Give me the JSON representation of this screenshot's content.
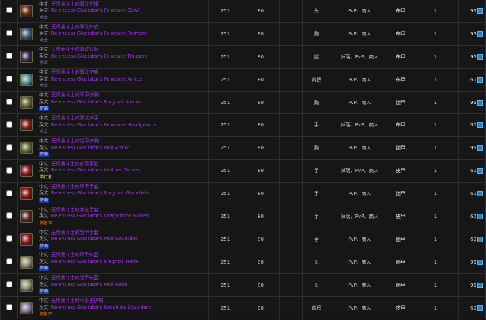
{
  "labels": {
    "zh": "中文:",
    "en": "英文:"
  },
  "class_colors": {
    "术士": "#9482c9",
    "萨满": "#2459ff",
    "潜行者": "#fff569",
    "德鲁伊": "#ff7d0a"
  },
  "rows": [
    {
      "zh": "无情角斗士的邪纹兜帽",
      "en": "Relentless Gladiator's Felweave Cowl",
      "class": "术士",
      "ilvl": "251",
      "req": "80",
      "extra": "",
      "slot": "头",
      "source": "PvP、商人",
      "type": "布甲",
      "qty": "1",
      "cost": "95",
      "icon_color": "#6b2a1a"
    },
    {
      "zh": "无情角斗士的邪纹外衣",
      "en": "Relentless Gladiator's Felweave Raiment",
      "class": "术士",
      "ilvl": "251",
      "req": "80",
      "extra": "",
      "slot": "胸",
      "source": "PvP、商人",
      "type": "布甲",
      "qty": "1",
      "cost": "95",
      "icon_color": "#4a5a80"
    },
    {
      "zh": "无情角斗士的邪纹长裤",
      "en": "Relentless Gladiator's Felweave Trousers",
      "class": "术士",
      "ilvl": "251",
      "req": "80",
      "extra": "",
      "slot": "腿",
      "source": "掉落、PvP、商人",
      "type": "布甲",
      "qty": "1",
      "cost": "95",
      "icon_color": "#3a2a55"
    },
    {
      "zh": "无情角斗士的邪纹护肩",
      "en": "Relentless Gladiator's Felweave Amice",
      "class": "术士",
      "ilvl": "251",
      "req": "80",
      "extra": "",
      "slot": "肩膀",
      "source": "PvP、商人",
      "type": "布甲",
      "qty": "1",
      "cost": "60",
      "icon_color": "#5a9a9a"
    },
    {
      "zh": "无情角斗士的环甲护胸",
      "en": "Relentless Gladiator's Ringmail Armor",
      "class": "萨满",
      "ilvl": "251",
      "req": "80",
      "extra": "",
      "slot": "胸",
      "source": "PvP、商人",
      "type": "锁甲",
      "qty": "1",
      "cost": "95",
      "icon_color": "#6a6a3a"
    },
    {
      "zh": "无情角斗士的邪纹护手",
      "en": "Relentless Gladiator's Felweave Handguards",
      "class": "术士",
      "ilvl": "251",
      "req": "80",
      "extra": "",
      "slot": "手",
      "source": "掉落、PvP、商人",
      "type": "布甲",
      "qty": "1",
      "cost": "60",
      "icon_color": "#8a1a1a"
    },
    {
      "zh": "无情角斗士的锁甲护胸",
      "en": "Relentless Gladiator's Mail Armor",
      "class": "萨满",
      "ilvl": "251",
      "req": "80",
      "extra": "",
      "slot": "胸",
      "source": "PvP、商人",
      "type": "锁甲",
      "qty": "1",
      "cost": "95",
      "icon_color": "#6a6a3a"
    },
    {
      "zh": "无情角斗士的皮甲手套",
      "en": "Relentless Gladiator's Leather Gloves",
      "class": "潜行者",
      "ilvl": "251",
      "req": "80",
      "extra": "",
      "slot": "手",
      "source": "掉落、PvP、商人",
      "type": "皮甲",
      "qty": "1",
      "cost": "60",
      "icon_color": "#8a1a1a"
    },
    {
      "zh": "无情角斗士的环甲手套",
      "en": "Relentless Gladiator's Ringmail Gauntlets",
      "class": "萨满",
      "ilvl": "251",
      "req": "80",
      "extra": "",
      "slot": "手",
      "source": "PvP、商人",
      "type": "锁甲",
      "qty": "1",
      "cost": "60",
      "icon_color": "#8a1a1a"
    },
    {
      "zh": "无情角斗士的龙皮手套",
      "en": "Relentless Gladiator's Dragonhide Gloves",
      "class": "德鲁伊",
      "ilvl": "251",
      "req": "80",
      "extra": "",
      "slot": "手",
      "source": "掉落、PvP、商人",
      "type": "皮甲",
      "qty": "1",
      "cost": "60",
      "icon_color": "#5a2a2a"
    },
    {
      "zh": "无情角斗士的锁甲手套",
      "en": "Relentless Gladiator's Mail Gauntlets",
      "class": "萨满",
      "ilvl": "251",
      "req": "80",
      "extra": "",
      "slot": "手",
      "source": "PvP、商人",
      "type": "锁甲",
      "qty": "1",
      "cost": "60",
      "icon_color": "#8a1a1a"
    },
    {
      "zh": "无情角斗士的环甲头盔",
      "en": "Relentless Gladiator's Ringmail Helm",
      "class": "萨满",
      "ilvl": "251",
      "req": "80",
      "extra": "",
      "slot": "头",
      "source": "PvP、商人",
      "type": "锁甲",
      "qty": "1",
      "cost": "95",
      "icon_color": "#9a9a7a"
    },
    {
      "zh": "无情角斗士的锁甲头盔",
      "en": "Relentless Gladiator's Mail Helm",
      "class": "萨满",
      "ilvl": "251",
      "req": "80",
      "extra": "",
      "slot": "头",
      "source": "PvP、商人",
      "type": "锁甲",
      "qty": "1",
      "cost": "95",
      "icon_color": "#9a9a7a"
    },
    {
      "zh": "无情角斗士的科多皮护肩",
      "en": "Relentless Gladiator's Kodohide Spaulders",
      "class": "德鲁伊",
      "ilvl": "251",
      "req": "80",
      "extra": "",
      "slot": "肩膀",
      "source": "PvP、商人",
      "type": "皮甲",
      "qty": "1",
      "cost": "60",
      "icon_color": "#8a7a9a"
    }
  ]
}
